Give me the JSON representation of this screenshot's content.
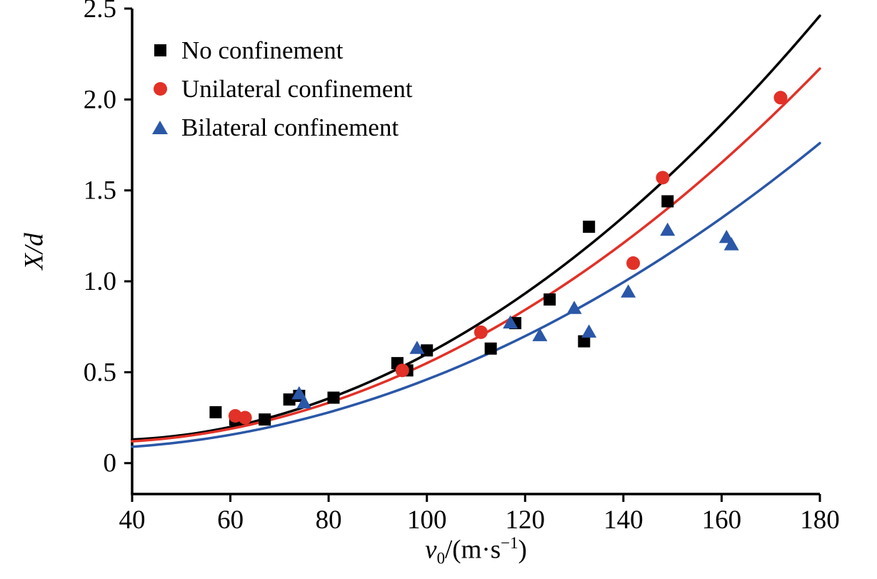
{
  "chart_data": {
    "type": "scatter",
    "title": "",
    "ylabel": "X/d",
    "xlabel_parts": {
      "var": "v",
      "sub": "0",
      "mid": "/(m·s",
      "sup": "−1",
      "end": ")"
    },
    "xlim": [
      40,
      180
    ],
    "ylim": [
      -0.17,
      2.5
    ],
    "x_ticks": [
      40,
      60,
      80,
      100,
      120,
      140,
      160,
      180
    ],
    "x_tick_labels": [
      "40",
      "60",
      "80",
      "100",
      "120",
      "140",
      "160",
      "180"
    ],
    "y_ticks": [
      0,
      0.5,
      1.0,
      1.5,
      2.0,
      2.5
    ],
    "y_tick_labels": [
      "0",
      "0.5",
      "1.0",
      "1.5",
      "2.0",
      "2.5"
    ],
    "grid": false,
    "legend_position": "upper-left-inside",
    "series": [
      {
        "name": "No confinement",
        "color": "#000000",
        "marker": "square",
        "points": [
          [
            57,
            0.28
          ],
          [
            61,
            0.24
          ],
          [
            67,
            0.24
          ],
          [
            72,
            0.35
          ],
          [
            74,
            0.37
          ],
          [
            81,
            0.36
          ],
          [
            94,
            0.55
          ],
          [
            96,
            0.51
          ],
          [
            100,
            0.62
          ],
          [
            113,
            0.63
          ],
          [
            118,
            0.77
          ],
          [
            125,
            0.9
          ],
          [
            132,
            0.67
          ],
          [
            133,
            1.3
          ],
          [
            149,
            1.44
          ]
        ],
        "fit": {
          "model": "quadratic",
          "a": 0.257,
          "b": -0.00758,
          "c": 0.00011012
        },
        "fit_endpoints": [
          [
            40,
            0.13
          ],
          [
            100,
            0.6
          ],
          [
            180,
            2.46
          ]
        ]
      },
      {
        "name": "Unilateral confinement",
        "color": "#e23127",
        "marker": "circle",
        "points": [
          [
            61,
            0.26
          ],
          [
            63,
            0.25
          ],
          [
            95,
            0.51
          ],
          [
            111,
            0.72
          ],
          [
            142,
            1.1
          ],
          [
            148,
            1.57
          ],
          [
            172,
            2.01
          ]
        ],
        "fit": {
          "model": "quadratic",
          "a": 0.2072,
          "b": -0.005917,
          "c": 9.345e-05
        },
        "fit_endpoints": [
          [
            40,
            0.12
          ],
          [
            100,
            0.55
          ],
          [
            180,
            2.17
          ]
        ]
      },
      {
        "name": "Bilateral confinement",
        "color": "#2a57a7",
        "marker": "triangle",
        "points": [
          [
            74,
            0.38
          ],
          [
            75,
            0.33
          ],
          [
            98,
            0.63
          ],
          [
            117,
            0.77
          ],
          [
            123,
            0.7
          ],
          [
            130,
            0.85
          ],
          [
            133,
            0.72
          ],
          [
            141,
            0.94
          ],
          [
            149,
            1.28
          ],
          [
            161,
            1.24
          ],
          [
            162,
            1.2
          ]
        ],
        "fit": {
          "model": "quadratic",
          "a": 0.1315,
          "b": -0.003917,
          "c": 7.202e-05
        },
        "fit_endpoints": [
          [
            40,
            0.09
          ],
          [
            100,
            0.46
          ],
          [
            180,
            1.76
          ]
        ]
      }
    ]
  }
}
